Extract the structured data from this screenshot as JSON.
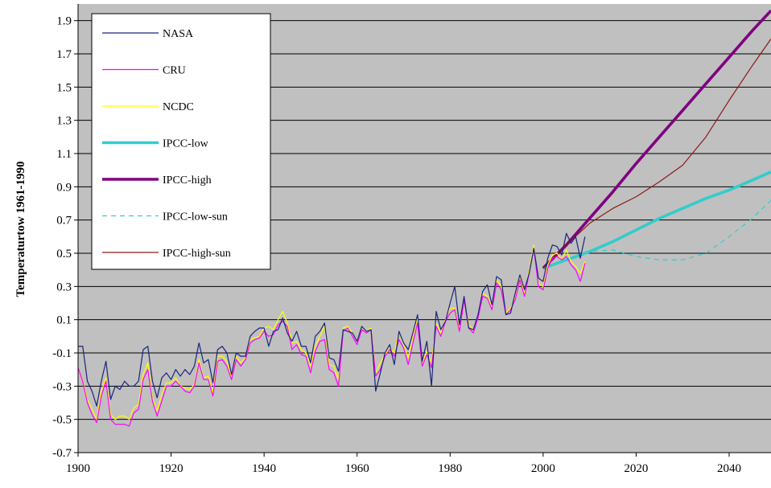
{
  "chart_data": {
    "type": "line",
    "title": "",
    "xlabel": "",
    "ylabel": "Temperaturtow 1961-1990",
    "xlim": [
      1900,
      2049
    ],
    "ylim": [
      -0.7,
      2.0
    ],
    "x_ticks": [
      "1900",
      "1920",
      "1940",
      "1960",
      "1980",
      "2000",
      "2020",
      "2040"
    ],
    "y_ticks": [
      "-0.7",
      "-0.5",
      "-0.3",
      "-0.1",
      "0.1",
      "0.3",
      "0.5",
      "0.7",
      "0.9",
      "1.1",
      "1.3",
      "1.5",
      "1.7",
      "1.9"
    ],
    "grid": "horizontal",
    "background": "#c0c0c0",
    "legend_position": "top-left",
    "series": [
      {
        "name": "NASA",
        "color": "#1a237e",
        "width": 1.2,
        "dash": "",
        "x": [
          1900,
          1901,
          1902,
          1903,
          1904,
          1905,
          1906,
          1907,
          1908,
          1909,
          1910,
          1911,
          1912,
          1913,
          1914,
          1915,
          1916,
          1917,
          1918,
          1919,
          1920,
          1921,
          1922,
          1923,
          1924,
          1925,
          1926,
          1927,
          1928,
          1929,
          1930,
          1931,
          1932,
          1933,
          1934,
          1935,
          1936,
          1937,
          1938,
          1939,
          1940,
          1941,
          1942,
          1943,
          1944,
          1945,
          1946,
          1947,
          1948,
          1949,
          1950,
          1951,
          1952,
          1953,
          1954,
          1955,
          1956,
          1957,
          1958,
          1959,
          1960,
          1961,
          1962,
          1963,
          1964,
          1965,
          1966,
          1967,
          1968,
          1969,
          1970,
          1971,
          1972,
          1973,
          1974,
          1975,
          1976,
          1977,
          1978,
          1979,
          1980,
          1981,
          1982,
          1983,
          1984,
          1985,
          1986,
          1987,
          1988,
          1989,
          1990,
          1991,
          1992,
          1993,
          1994,
          1995,
          1996,
          1997,
          1998,
          1999,
          2000,
          2001,
          2002,
          2003,
          2004,
          2005,
          2006,
          2007,
          2008,
          2009
        ],
        "y": [
          -0.06,
          -0.06,
          -0.27,
          -0.33,
          -0.42,
          -0.27,
          -0.15,
          -0.38,
          -0.3,
          -0.32,
          -0.27,
          -0.3,
          -0.3,
          -0.27,
          -0.08,
          -0.06,
          -0.27,
          -0.37,
          -0.25,
          -0.22,
          -0.26,
          -0.2,
          -0.24,
          -0.2,
          -0.23,
          -0.18,
          -0.04,
          -0.16,
          -0.14,
          -0.28,
          -0.08,
          -0.06,
          -0.1,
          -0.23,
          -0.1,
          -0.12,
          -0.12,
          0.0,
          0.03,
          0.05,
          0.05,
          -0.06,
          0.03,
          0.04,
          0.11,
          0.02,
          -0.03,
          0.03,
          -0.06,
          -0.06,
          -0.16,
          0.0,
          0.03,
          0.08,
          -0.13,
          -0.14,
          -0.21,
          0.04,
          0.03,
          0.02,
          -0.03,
          0.06,
          0.03,
          0.04,
          -0.33,
          -0.22,
          -0.1,
          -0.05,
          -0.17,
          0.03,
          -0.04,
          -0.08,
          0.02,
          0.13,
          -0.15,
          -0.03,
          -0.3,
          0.15,
          0.04,
          0.09,
          0.2,
          0.3,
          0.07,
          0.24,
          0.05,
          0.04,
          0.13,
          0.27,
          0.31,
          0.19,
          0.36,
          0.34,
          0.13,
          0.14,
          0.26,
          0.37,
          0.28,
          0.38,
          0.53,
          0.35,
          0.33,
          0.47,
          0.55,
          0.54,
          0.49,
          0.62,
          0.56,
          0.6,
          0.47,
          0.6
        ]
      },
      {
        "name": "CRU",
        "color": "#ff00ff",
        "width": 1.2,
        "dash": "",
        "x": [
          1900,
          1901,
          1902,
          1903,
          1904,
          1905,
          1906,
          1907,
          1908,
          1909,
          1910,
          1911,
          1912,
          1913,
          1914,
          1915,
          1916,
          1917,
          1918,
          1919,
          1920,
          1921,
          1922,
          1923,
          1924,
          1925,
          1926,
          1927,
          1928,
          1929,
          1930,
          1931,
          1932,
          1933,
          1934,
          1935,
          1936,
          1937,
          1938,
          1939,
          1940,
          1941,
          1942,
          1943,
          1944,
          1945,
          1946,
          1947,
          1948,
          1949,
          1950,
          1951,
          1952,
          1953,
          1954,
          1955,
          1956,
          1957,
          1958,
          1959,
          1960,
          1961,
          1962,
          1963,
          1964,
          1965,
          1966,
          1967,
          1968,
          1969,
          1970,
          1971,
          1972,
          1973,
          1974,
          1975,
          1976,
          1977,
          1978,
          1979,
          1980,
          1981,
          1982,
          1983,
          1984,
          1985,
          1986,
          1987,
          1988,
          1989,
          1990,
          1991,
          1992,
          1993,
          1994,
          1995,
          1996,
          1997,
          1998,
          1999,
          2000,
          2001,
          2002,
          2003,
          2004,
          2005,
          2006,
          2007,
          2008,
          2009
        ],
        "y": [
          -0.19,
          -0.27,
          -0.4,
          -0.47,
          -0.52,
          -0.36,
          -0.27,
          -0.5,
          -0.53,
          -0.53,
          -0.53,
          -0.54,
          -0.46,
          -0.44,
          -0.26,
          -0.2,
          -0.39,
          -0.48,
          -0.39,
          -0.3,
          -0.3,
          -0.27,
          -0.3,
          -0.33,
          -0.34,
          -0.3,
          -0.16,
          -0.26,
          -0.26,
          -0.36,
          -0.15,
          -0.14,
          -0.18,
          -0.26,
          -0.14,
          -0.18,
          -0.14,
          -0.04,
          -0.02,
          -0.01,
          0.03,
          0.0,
          0.01,
          0.07,
          0.09,
          0.06,
          -0.08,
          -0.05,
          -0.11,
          -0.12,
          -0.22,
          -0.09,
          -0.03,
          -0.02,
          -0.2,
          -0.22,
          -0.3,
          0.03,
          0.05,
          0.0,
          -0.05,
          0.04,
          0.02,
          0.04,
          -0.24,
          -0.2,
          -0.12,
          -0.08,
          -0.12,
          -0.02,
          -0.07,
          -0.17,
          -0.04,
          0.08,
          -0.18,
          -0.11,
          -0.19,
          0.06,
          0.0,
          0.09,
          0.14,
          0.16,
          0.03,
          0.22,
          0.05,
          0.02,
          0.11,
          0.24,
          0.23,
          0.16,
          0.32,
          0.28,
          0.13,
          0.16,
          0.22,
          0.34,
          0.24,
          0.38,
          0.53,
          0.3,
          0.28,
          0.41,
          0.47,
          0.48,
          0.46,
          0.48,
          0.43,
          0.4,
          0.33,
          0.44
        ]
      },
      {
        "name": "NCDC",
        "color": "#ffff00",
        "width": 1.2,
        "dash": "",
        "x": [
          1900,
          1901,
          1902,
          1903,
          1904,
          1905,
          1906,
          1907,
          1908,
          1909,
          1910,
          1911,
          1912,
          1913,
          1914,
          1915,
          1916,
          1917,
          1918,
          1919,
          1920,
          1921,
          1922,
          1923,
          1924,
          1925,
          1926,
          1927,
          1928,
          1929,
          1930,
          1931,
          1932,
          1933,
          1934,
          1935,
          1936,
          1937,
          1938,
          1939,
          1940,
          1941,
          1942,
          1943,
          1944,
          1945,
          1946,
          1947,
          1948,
          1949,
          1950,
          1951,
          1952,
          1953,
          1954,
          1955,
          1956,
          1957,
          1958,
          1959,
          1960,
          1961,
          1962,
          1963,
          1964,
          1965,
          1966,
          1967,
          1968,
          1969,
          1970,
          1971,
          1972,
          1973,
          1974,
          1975,
          1976,
          1977,
          1978,
          1979,
          1980,
          1981,
          1982,
          1983,
          1984,
          1985,
          1986,
          1987,
          1988,
          1989,
          1990,
          1991,
          1992,
          1993,
          1994,
          1995,
          1996,
          1997,
          1998,
          1999,
          2000,
          2001,
          2002,
          2003,
          2004,
          2005,
          2006,
          2007,
          2008,
          2009
        ],
        "y": [
          -0.2,
          -0.26,
          -0.38,
          -0.44,
          -0.5,
          -0.33,
          -0.25,
          -0.47,
          -0.5,
          -0.48,
          -0.48,
          -0.5,
          -0.43,
          -0.41,
          -0.23,
          -0.16,
          -0.37,
          -0.45,
          -0.35,
          -0.28,
          -0.28,
          -0.25,
          -0.3,
          -0.31,
          -0.32,
          -0.29,
          -0.14,
          -0.25,
          -0.24,
          -0.34,
          -0.12,
          -0.12,
          -0.15,
          -0.25,
          -0.12,
          -0.16,
          -0.13,
          -0.02,
          -0.01,
          0.0,
          0.05,
          0.06,
          0.04,
          0.1,
          0.15,
          0.08,
          -0.04,
          -0.03,
          -0.08,
          -0.1,
          -0.18,
          -0.06,
          0.0,
          0.06,
          -0.17,
          -0.18,
          -0.26,
          0.05,
          0.06,
          0.02,
          -0.03,
          0.06,
          0.03,
          0.05,
          -0.22,
          -0.16,
          -0.11,
          -0.07,
          -0.1,
          0.03,
          -0.05,
          -0.13,
          0.0,
          0.11,
          -0.16,
          -0.09,
          -0.16,
          0.08,
          0.02,
          0.1,
          0.17,
          0.17,
          0.05,
          0.23,
          0.07,
          0.04,
          0.12,
          0.26,
          0.24,
          0.18,
          0.34,
          0.3,
          0.14,
          0.17,
          0.23,
          0.36,
          0.26,
          0.4,
          0.55,
          0.32,
          0.3,
          0.43,
          0.49,
          0.5,
          0.46,
          0.52,
          0.45,
          0.42,
          0.38,
          0.45
        ]
      },
      {
        "name": "IPCC-low",
        "color": "#33cccc",
        "width": 3.6,
        "dash": "",
        "x": [
          2000,
          2005,
          2010,
          2015,
          2020,
          2025,
          2030,
          2035,
          2040,
          2045,
          2049
        ],
        "y": [
          0.41,
          0.46,
          0.51,
          0.57,
          0.64,
          0.71,
          0.77,
          0.83,
          0.88,
          0.94,
          0.99
        ]
      },
      {
        "name": "IPCC-high",
        "color": "#800080",
        "width": 3.6,
        "dash": "",
        "x": [
          2000,
          2005,
          2010,
          2015,
          2020,
          2025,
          2030,
          2035,
          2040,
          2045,
          2049
        ],
        "y": [
          0.41,
          0.55,
          0.71,
          0.87,
          1.04,
          1.2,
          1.36,
          1.52,
          1.68,
          1.84,
          1.96
        ]
      },
      {
        "name": "IPCC-low-sun",
        "color": "#33cccc",
        "width": 1.2,
        "dash": "6 5",
        "x": [
          2000,
          2005,
          2010,
          2015,
          2020,
          2025,
          2030,
          2035,
          2040,
          2045,
          2049
        ],
        "y": [
          0.41,
          0.46,
          0.51,
          0.52,
          0.48,
          0.46,
          0.46,
          0.5,
          0.6,
          0.71,
          0.82
        ]
      },
      {
        "name": "IPCC-high-sun",
        "color": "#8b1a1a",
        "width": 1.2,
        "dash": "",
        "x": [
          2000,
          2005,
          2010,
          2015,
          2020,
          2025,
          2030,
          2035,
          2040,
          2045,
          2049
        ],
        "y": [
          0.41,
          0.55,
          0.68,
          0.77,
          0.84,
          0.93,
          1.03,
          1.2,
          1.42,
          1.63,
          1.79
        ]
      }
    ]
  }
}
